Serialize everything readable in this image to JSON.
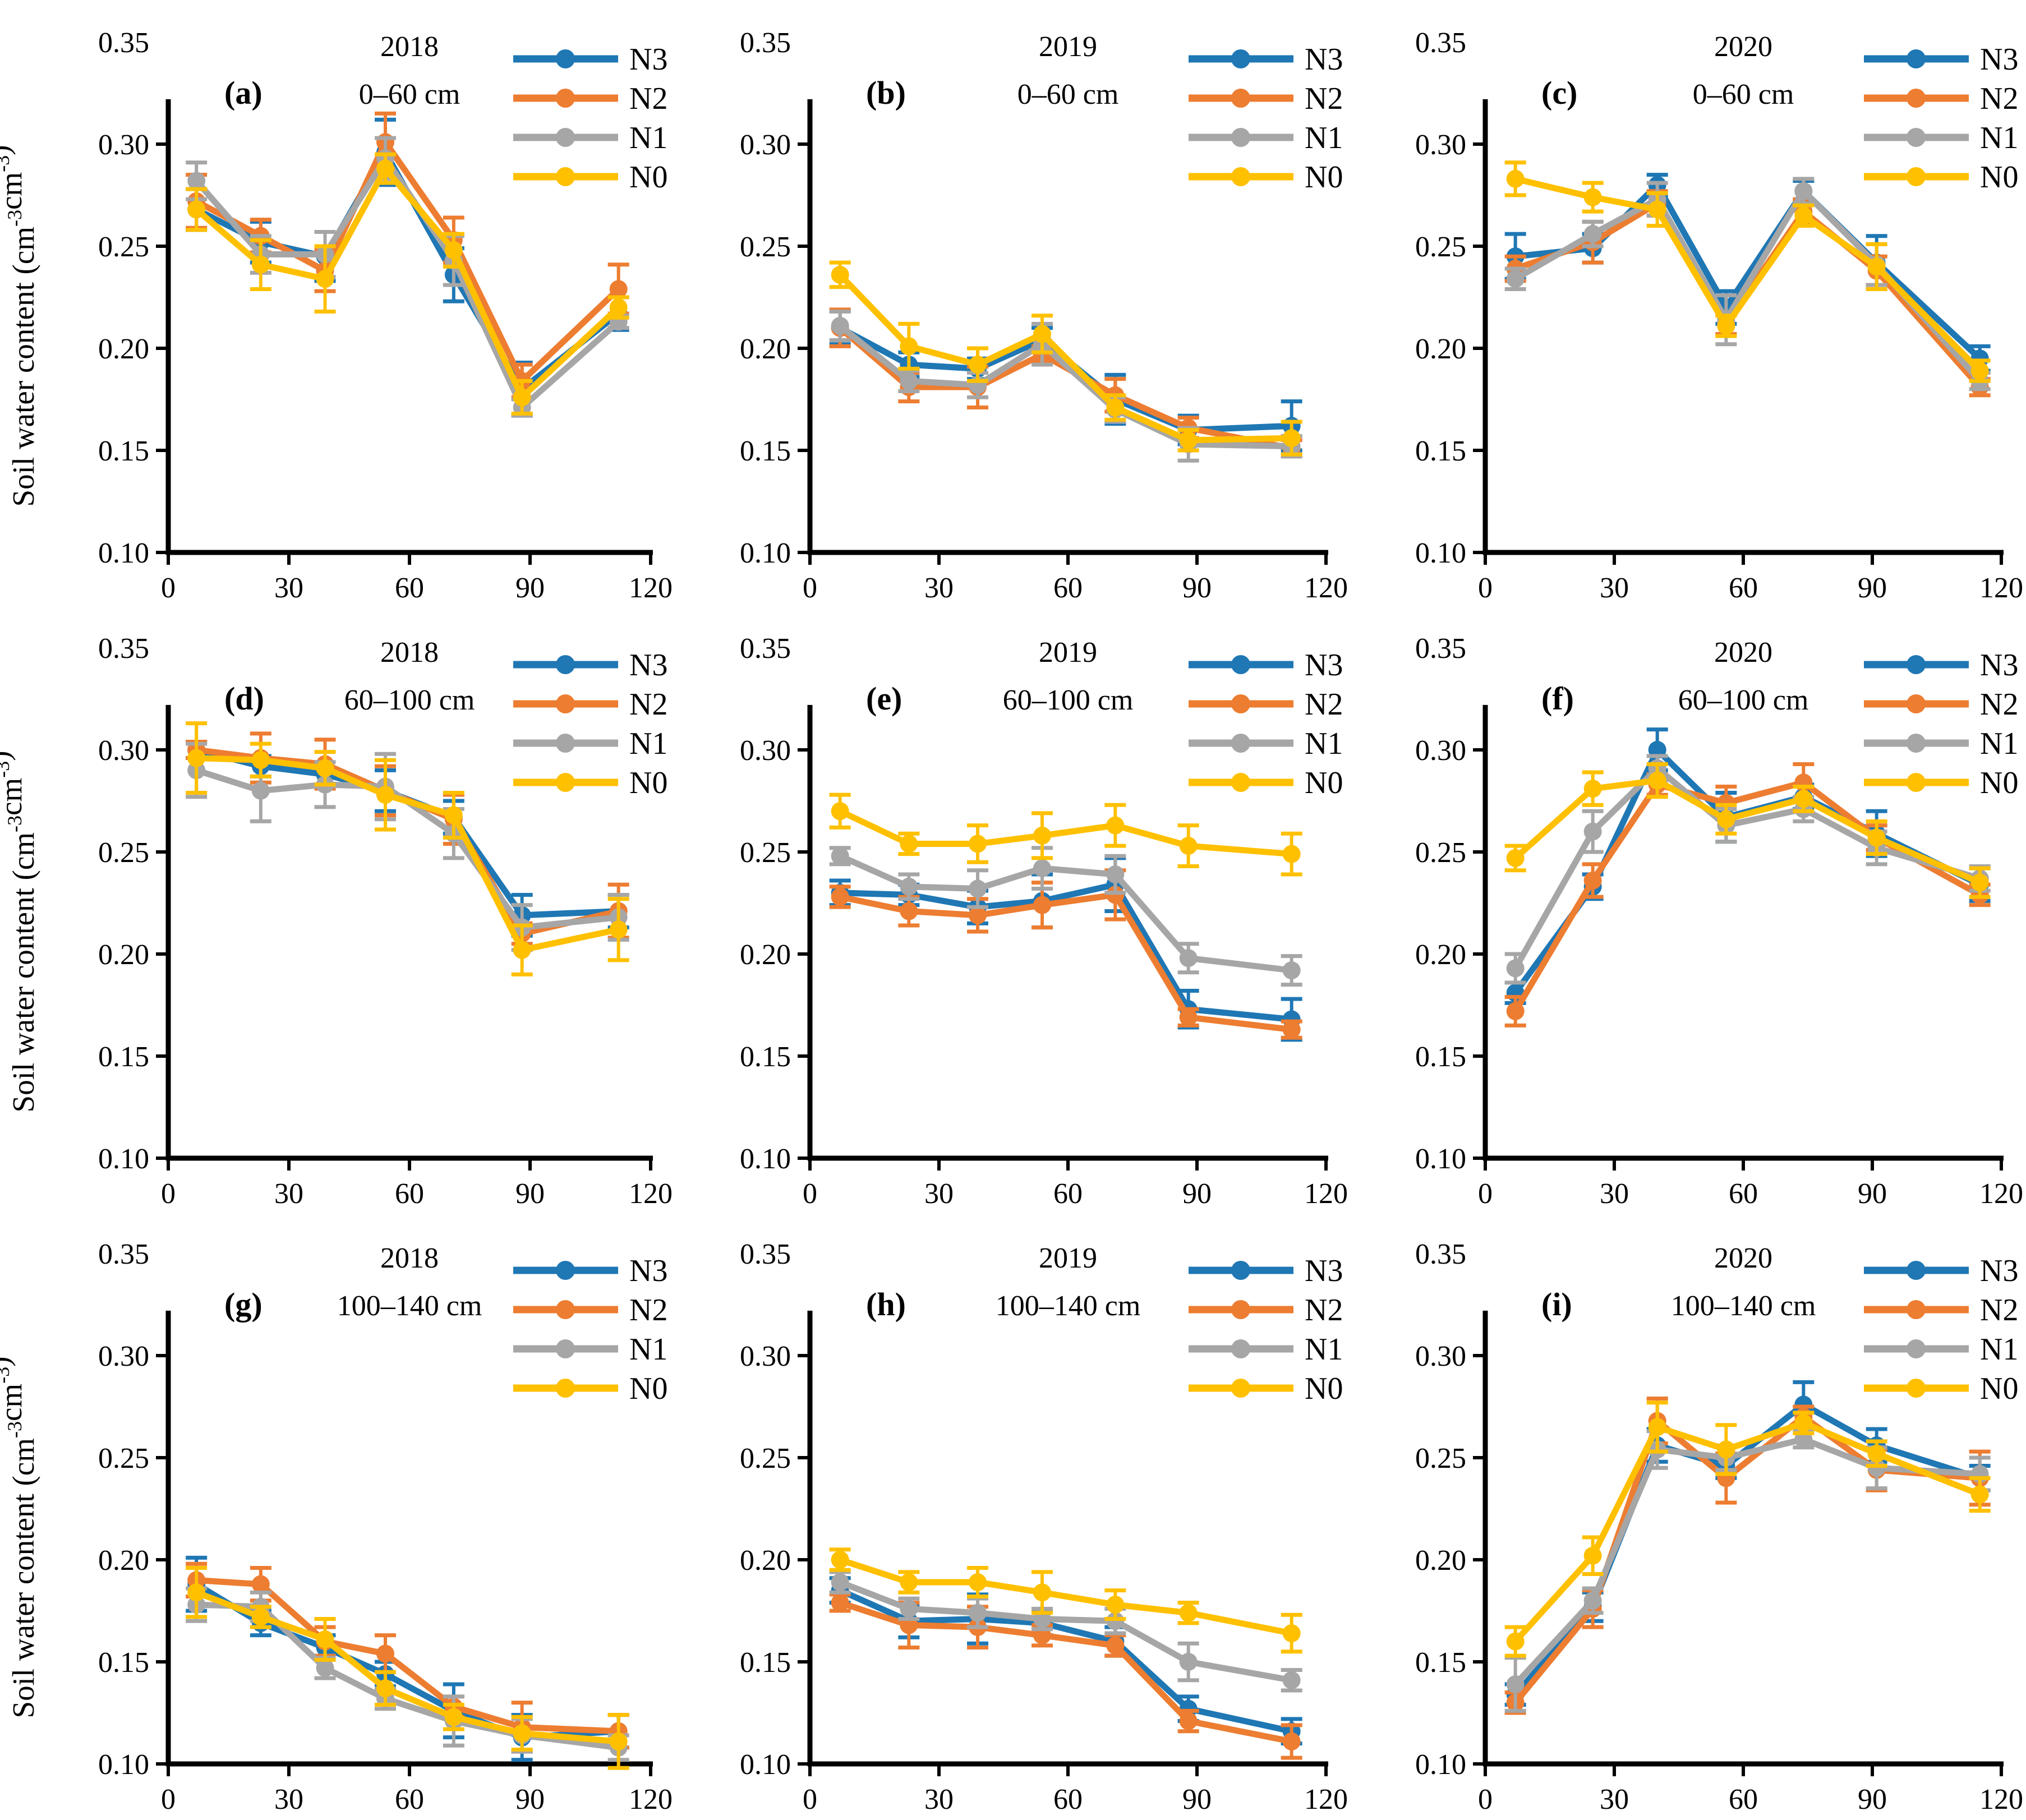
{
  "figure": {
    "background": "#FFFFFF",
    "text_color": "#000000",
    "y_axis_title_plain": "Soil water content (cm-3cm-3)",
    "y_axis_title_parts": [
      {
        "t": "Soil water content (cm"
      },
      {
        "t": "-3",
        "sup": true
      },
      {
        "t": "cm"
      },
      {
        "t": "-3",
        "sup": true
      },
      {
        "t": ")"
      }
    ]
  },
  "palette": {
    "N3": "#1F77B4",
    "N2": "#ED7D31",
    "N1": "#A6A6A6",
    "N0": "#FFC000",
    "axis": "#000000"
  },
  "series_order": [
    "N3",
    "N2",
    "N1",
    "N0"
  ],
  "axes": {
    "xlim": [
      0,
      120
    ],
    "xticks": [
      0,
      30,
      60,
      90,
      120
    ],
    "ylim": [
      0.1,
      0.35
    ],
    "yticks": [
      0.1,
      0.15,
      0.2,
      0.25,
      0.3,
      0.35
    ],
    "grid": "off",
    "legend_position": "top-right"
  },
  "chart_data": [
    {
      "id": "a",
      "type": "line",
      "letter": "(a)",
      "title_line1": "2018",
      "title_line2": "0–60 cm",
      "has_y_title": true,
      "x": [
        7,
        23,
        39,
        54,
        71,
        88,
        112
      ],
      "series": [
        {
          "name": "N3",
          "values": [
            0.268,
            0.252,
            0.245,
            0.296,
            0.236,
            0.18,
            0.217
          ],
          "errors": [
            0.01,
            0.01,
            0.012,
            0.016,
            0.013,
            0.013,
            0.008
          ]
        },
        {
          "name": "N2",
          "values": [
            0.272,
            0.255,
            0.238,
            0.301,
            0.253,
            0.184,
            0.229
          ],
          "errors": [
            0.013,
            0.008,
            0.01,
            0.014,
            0.011,
            0.008,
            0.012
          ]
        },
        {
          "name": "N1",
          "values": [
            0.282,
            0.246,
            0.246,
            0.293,
            0.243,
            0.171,
            0.213
          ],
          "errors": [
            0.009,
            0.009,
            0.011,
            0.01,
            0.012,
            0.004,
            0.003
          ]
        },
        {
          "name": "N0",
          "values": [
            0.268,
            0.241,
            0.234,
            0.288,
            0.248,
            0.176,
            0.22
          ],
          "errors": [
            0.01,
            0.012,
            0.016,
            0.007,
            0.008,
            0.008,
            0.005
          ]
        }
      ]
    },
    {
      "id": "b",
      "type": "line",
      "letter": "(b)",
      "title_line1": "2019",
      "title_line2": "0–60 cm",
      "has_y_title": false,
      "x": [
        7,
        23,
        39,
        54,
        71,
        88,
        112
      ],
      "series": [
        {
          "name": "N3",
          "values": [
            0.21,
            0.192,
            0.19,
            0.204,
            0.175,
            0.16,
            0.162
          ],
          "errors": [
            0.008,
            0.006,
            0.005,
            0.006,
            0.012,
            0.007,
            0.012
          ]
        },
        {
          "name": "N2",
          "values": [
            0.21,
            0.181,
            0.181,
            0.197,
            0.177,
            0.161,
            0.151
          ],
          "errors": [
            0.009,
            0.007,
            0.01,
            0.004,
            0.008,
            0.005,
            0.004
          ]
        },
        {
          "name": "N1",
          "values": [
            0.211,
            0.184,
            0.182,
            0.202,
            0.17,
            0.153,
            0.152
          ],
          "errors": [
            0.007,
            0.005,
            0.006,
            0.01,
            0.006,
            0.008,
            0.005
          ]
        },
        {
          "name": "N0",
          "values": [
            0.236,
            0.201,
            0.192,
            0.207,
            0.171,
            0.155,
            0.156
          ],
          "errors": [
            0.006,
            0.011,
            0.008,
            0.009,
            0.006,
            0.005,
            0.008
          ]
        }
      ]
    },
    {
      "id": "c",
      "type": "line",
      "letter": "(c)",
      "title_line1": "2020",
      "title_line2": "0–60 cm",
      "has_y_title": false,
      "x": [
        7,
        25,
        40,
        56,
        74,
        91,
        115
      ],
      "series": [
        {
          "name": "N3",
          "values": [
            0.245,
            0.249,
            0.28,
            0.22,
            0.277,
            0.242,
            0.195
          ],
          "errors": [
            0.011,
            0.007,
            0.005,
            0.008,
            0.005,
            0.013,
            0.006
          ]
        },
        {
          "name": "N2",
          "values": [
            0.239,
            0.252,
            0.271,
            0.212,
            0.267,
            0.238,
            0.181
          ],
          "errors": [
            0.006,
            0.01,
            0.006,
            0.005,
            0.006,
            0.007,
            0.004
          ]
        },
        {
          "name": "N1",
          "values": [
            0.234,
            0.256,
            0.273,
            0.214,
            0.277,
            0.241,
            0.184
          ],
          "errors": [
            0.005,
            0.006,
            0.008,
            0.012,
            0.006,
            0.01,
            0.004
          ]
        },
        {
          "name": "N0",
          "values": [
            0.283,
            0.274,
            0.268,
            0.211,
            0.265,
            0.24,
            0.189
          ],
          "errors": [
            0.008,
            0.007,
            0.008,
            0.005,
            0.005,
            0.011,
            0.005
          ]
        }
      ]
    },
    {
      "id": "d",
      "type": "line",
      "letter": "(d)",
      "title_line1": "2018",
      "title_line2": "60–100 cm",
      "has_y_title": true,
      "x": [
        7,
        23,
        39,
        54,
        71,
        88,
        112
      ],
      "series": [
        {
          "name": "N3",
          "values": [
            0.3,
            0.292,
            0.288,
            0.28,
            0.267,
            0.219,
            0.221
          ],
          "errors": [
            0.004,
            0.005,
            0.006,
            0.01,
            0.008,
            0.01,
            0.008
          ]
        },
        {
          "name": "N2",
          "values": [
            0.3,
            0.296,
            0.293,
            0.28,
            0.266,
            0.21,
            0.221
          ],
          "errors": [
            0.004,
            0.012,
            0.012,
            0.012,
            0.012,
            0.005,
            0.013
          ]
        },
        {
          "name": "N1",
          "values": [
            0.29,
            0.28,
            0.283,
            0.282,
            0.259,
            0.213,
            0.218
          ],
          "errors": [
            0.013,
            0.015,
            0.011,
            0.016,
            0.012,
            0.011,
            0.011
          ]
        },
        {
          "name": "N0",
          "values": [
            0.296,
            0.295,
            0.291,
            0.278,
            0.268,
            0.202,
            0.212
          ],
          "errors": [
            0.017,
            0.008,
            0.008,
            0.017,
            0.011,
            0.012,
            0.015
          ]
        }
      ]
    },
    {
      "id": "e",
      "type": "line",
      "letter": "(e)",
      "title_line1": "2019",
      "title_line2": "60–100 cm",
      "has_y_title": false,
      "x": [
        7,
        23,
        39,
        54,
        71,
        88,
        112
      ],
      "series": [
        {
          "name": "N3",
          "values": [
            0.23,
            0.229,
            0.223,
            0.226,
            0.234,
            0.173,
            0.168
          ],
          "errors": [
            0.006,
            0.005,
            0.008,
            0.013,
            0.013,
            0.009,
            0.01
          ]
        },
        {
          "name": "N2",
          "values": [
            0.228,
            0.221,
            0.219,
            0.224,
            0.229,
            0.169,
            0.163
          ],
          "errors": [
            0.005,
            0.007,
            0.008,
            0.011,
            0.012,
            0.004,
            0.004
          ]
        },
        {
          "name": "N1",
          "values": [
            0.248,
            0.233,
            0.232,
            0.242,
            0.239,
            0.198,
            0.192
          ],
          "errors": [
            0.004,
            0.006,
            0.009,
            0.01,
            0.009,
            0.007,
            0.007
          ]
        },
        {
          "name": "N0",
          "values": [
            0.27,
            0.254,
            0.254,
            0.258,
            0.263,
            0.253,
            0.249
          ],
          "errors": [
            0.008,
            0.005,
            0.009,
            0.011,
            0.01,
            0.01,
            0.01
          ]
        }
      ]
    },
    {
      "id": "f",
      "type": "line",
      "letter": "(f)",
      "title_line1": "2020",
      "title_line2": "60–100 cm",
      "has_y_title": false,
      "x": [
        7,
        25,
        40,
        56,
        74,
        91,
        115
      ],
      "series": [
        {
          "name": "N3",
          "values": [
            0.181,
            0.233,
            0.3,
            0.267,
            0.277,
            0.259,
            0.234
          ],
          "errors": [
            0.005,
            0.006,
            0.01,
            0.012,
            0.006,
            0.011,
            0.008
          ]
        },
        {
          "name": "N2",
          "values": [
            0.172,
            0.236,
            0.283,
            0.274,
            0.284,
            0.257,
            0.229
          ],
          "errors": [
            0.007,
            0.008,
            0.005,
            0.008,
            0.009,
            0.006,
            0.005
          ]
        },
        {
          "name": "N1",
          "values": [
            0.193,
            0.26,
            0.291,
            0.263,
            0.271,
            0.252,
            0.237
          ],
          "errors": [
            0.007,
            0.01,
            0.006,
            0.008,
            0.006,
            0.008,
            0.006
          ]
        },
        {
          "name": "N0",
          "values": [
            0.247,
            0.281,
            0.285,
            0.266,
            0.276,
            0.257,
            0.235
          ],
          "errors": [
            0.006,
            0.008,
            0.008,
            0.007,
            0.006,
            0.008,
            0.007
          ]
        }
      ]
    },
    {
      "id": "g",
      "type": "line",
      "letter": "(g)",
      "title_line1": "2018",
      "title_line2": "100–140 cm",
      "has_y_title": true,
      "x": [
        7,
        23,
        39,
        54,
        71,
        88,
        112
      ],
      "series": [
        {
          "name": "N3",
          "values": [
            0.188,
            0.169,
            0.157,
            0.144,
            0.126,
            0.113,
            0.116
          ],
          "errors": [
            0.013,
            0.006,
            0.006,
            0.006,
            0.013,
            0.011,
            0.008
          ]
        },
        {
          "name": "N2",
          "values": [
            0.19,
            0.188,
            0.16,
            0.154,
            0.128,
            0.118,
            0.116
          ],
          "errors": [
            0.008,
            0.008,
            0.007,
            0.009,
            0.005,
            0.012,
            0.008
          ]
        },
        {
          "name": "N1",
          "values": [
            0.178,
            0.177,
            0.147,
            0.132,
            0.121,
            0.114,
            0.108
          ],
          "errors": [
            0.008,
            0.007,
            0.005,
            0.005,
            0.012,
            0.008,
            0.006
          ]
        },
        {
          "name": "N0",
          "values": [
            0.184,
            0.172,
            0.161,
            0.137,
            0.123,
            0.115,
            0.111
          ],
          "errors": [
            0.012,
            0.005,
            0.01,
            0.008,
            0.006,
            0.008,
            0.013
          ]
        }
      ]
    },
    {
      "id": "h",
      "type": "line",
      "letter": "(h)",
      "title_line1": "2019",
      "title_line2": "100–140 cm",
      "has_y_title": false,
      "x": [
        7,
        23,
        39,
        54,
        71,
        88,
        112
      ],
      "series": [
        {
          "name": "N3",
          "values": [
            0.185,
            0.17,
            0.171,
            0.169,
            0.16,
            0.127,
            0.116
          ],
          "errors": [
            0.006,
            0.008,
            0.012,
            0.006,
            0.007,
            0.006,
            0.006
          ]
        },
        {
          "name": "N2",
          "values": [
            0.179,
            0.168,
            0.167,
            0.163,
            0.158,
            0.121,
            0.111
          ],
          "errors": [
            0.004,
            0.011,
            0.01,
            0.005,
            0.005,
            0.005,
            0.008
          ]
        },
        {
          "name": "N1",
          "values": [
            0.189,
            0.176,
            0.174,
            0.171,
            0.17,
            0.15,
            0.141
          ],
          "errors": [
            0.005,
            0.005,
            0.007,
            0.005,
            0.006,
            0.009,
            0.005
          ]
        },
        {
          "name": "N0",
          "values": [
            0.2,
            0.189,
            0.189,
            0.184,
            0.178,
            0.174,
            0.164
          ],
          "errors": [
            0.005,
            0.005,
            0.007,
            0.01,
            0.007,
            0.005,
            0.009
          ]
        }
      ]
    },
    {
      "id": "i",
      "type": "line",
      "letter": "(i)",
      "title_line1": "2020",
      "title_line2": "100–140 cm",
      "has_y_title": false,
      "x": [
        7,
        25,
        40,
        56,
        74,
        91,
        115
      ],
      "series": [
        {
          "name": "N3",
          "values": [
            0.134,
            0.177,
            0.256,
            0.246,
            0.276,
            0.256,
            0.24
          ],
          "errors": [
            0.005,
            0.007,
            0.008,
            0.006,
            0.011,
            0.008,
            0.006
          ]
        },
        {
          "name": "N2",
          "values": [
            0.13,
            0.176,
            0.268,
            0.24,
            0.27,
            0.244,
            0.24
          ],
          "errors": [
            0.005,
            0.009,
            0.011,
            0.012,
            0.005,
            0.01,
            0.013
          ]
        },
        {
          "name": "N1",
          "values": [
            0.139,
            0.18,
            0.254,
            0.25,
            0.259,
            0.245,
            0.242
          ],
          "errors": [
            0.013,
            0.006,
            0.009,
            0.006,
            0.004,
            0.01,
            0.008
          ]
        },
        {
          "name": "N0",
          "values": [
            0.16,
            0.202,
            0.265,
            0.254,
            0.267,
            0.252,
            0.232
          ],
          "errors": [
            0.007,
            0.009,
            0.012,
            0.012,
            0.005,
            0.006,
            0.008
          ]
        }
      ]
    }
  ]
}
